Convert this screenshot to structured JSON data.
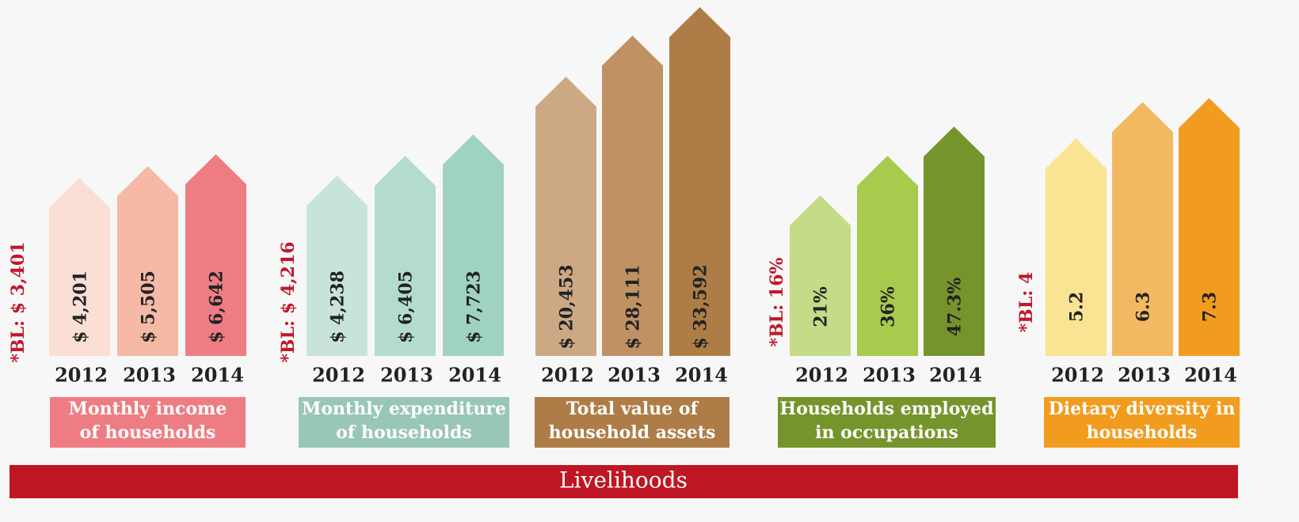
{
  "groups": [
    {
      "title": [
        "Monthly income",
        "of  households"
      ],
      "baseline": "*BL: $ 3,401",
      "items": [
        {
          "year": "2012",
          "label": "$ 4,201"
        },
        {
          "year": "2013",
          "label": "$ 5,505"
        },
        {
          "year": "2014",
          "label": "$ 6,642"
        }
      ]
    },
    {
      "title": [
        "Monthly expenditure",
        "of households"
      ],
      "baseline": "*BL: $ 4,216",
      "items": [
        {
          "year": "2012",
          "label": "$ 4,238"
        },
        {
          "year": "2013",
          "label": "$ 6,405"
        },
        {
          "year": "2014",
          "label": "$ 7,723"
        }
      ]
    },
    {
      "title": [
        "Total value of",
        "household assets"
      ],
      "items": [
        {
          "year": "2012",
          "label": "$ 20,453"
        },
        {
          "year": "2013",
          "label": "$ 28,111"
        },
        {
          "year": "2014",
          "label": "$ 33,592"
        }
      ]
    },
    {
      "title": [
        "Households employed",
        "in occupations"
      ],
      "baseline": "*BL: 16%",
      "items": [
        {
          "year": "2012",
          "label": "21%"
        },
        {
          "year": "2013",
          "label": "36%"
        },
        {
          "year": "2014",
          "label": "47.3%"
        }
      ]
    },
    {
      "title": [
        "Dietary diversity in",
        "households"
      ],
      "baseline": "*BL: 4",
      "items": [
        {
          "year": "2012",
          "label": "5.2"
        },
        {
          "year": "2013",
          "label": "6.3"
        },
        {
          "year": "2014",
          "label": "7.3"
        }
      ]
    }
  ],
  "footer": "Livelihoods"
}
